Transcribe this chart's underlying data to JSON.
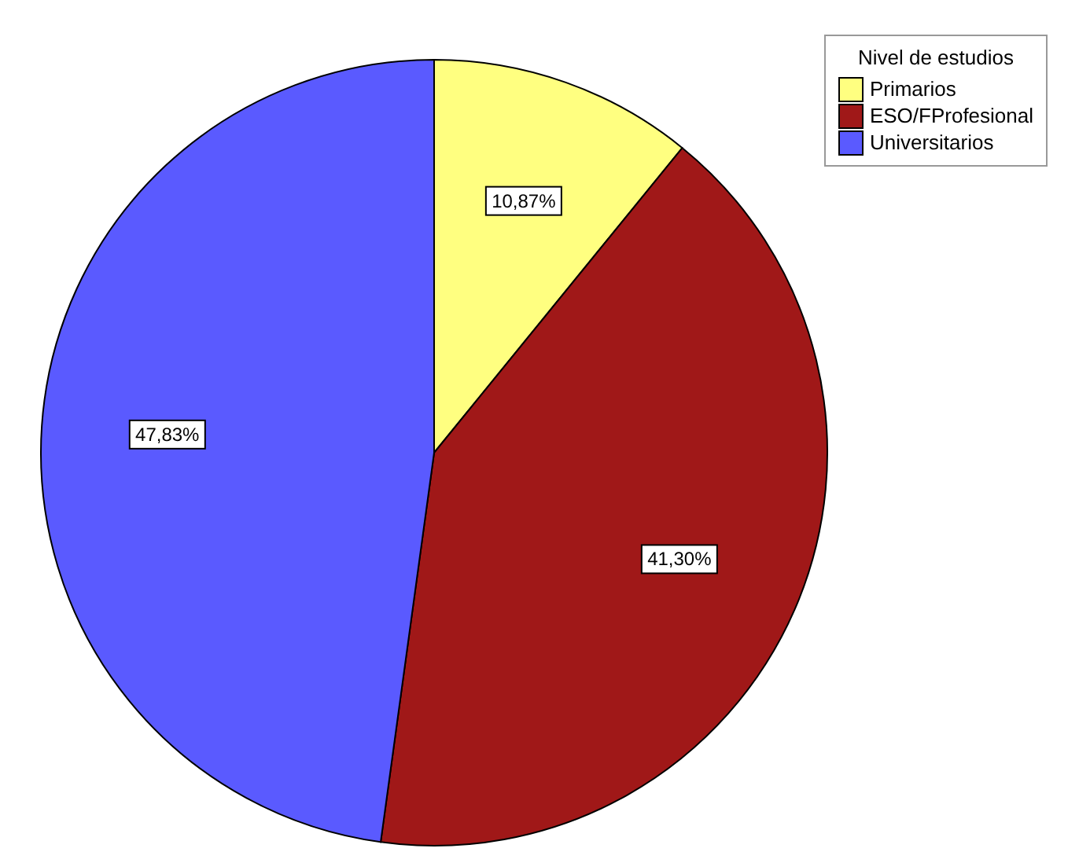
{
  "chart_data": {
    "type": "pie",
    "legend_title": "Nivel de estudios",
    "legend": "top right",
    "categories": [
      "Primarios",
      "ESO/FProfesional",
      "Universitarios"
    ],
    "values": [
      10.87,
      41.3,
      47.83
    ],
    "colors": [
      "#ffff80",
      "#a01818",
      "#5a5aff"
    ],
    "value_labels": [
      "10,87%",
      "41,30%",
      "47,83%"
    ]
  }
}
